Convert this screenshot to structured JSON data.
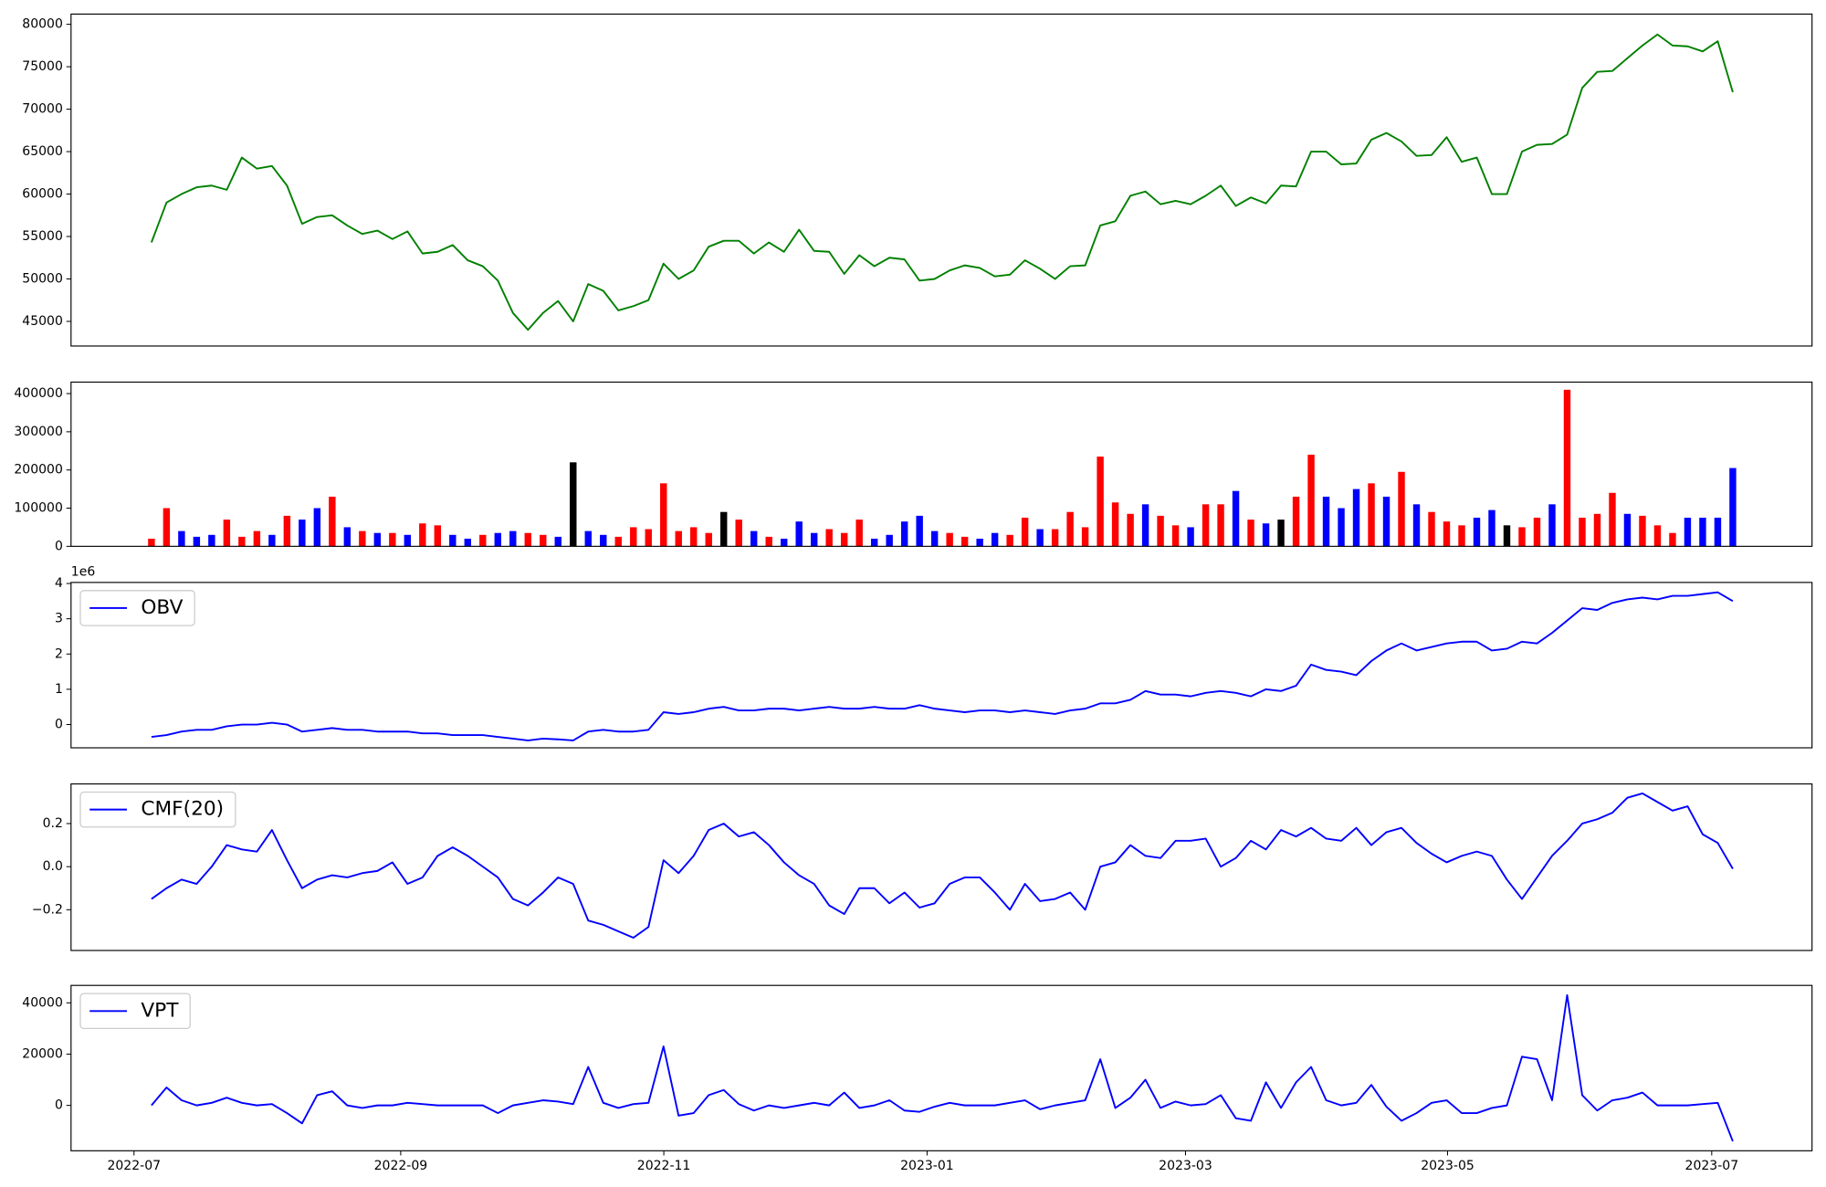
{
  "chart_data": [
    {
      "type": "line",
      "series": [
        {
          "color": "green",
          "values": [
            54300,
            59000,
            60000,
            60800,
            61000,
            60500,
            64300,
            63000,
            63300,
            61000,
            56500,
            57300,
            57500,
            56300,
            55300,
            55700,
            54700,
            55600,
            53000,
            53200,
            54000,
            52200,
            51500,
            49800,
            46000,
            44000,
            46000,
            47400,
            45000,
            49400,
            48600,
            46300,
            46800,
            47500,
            51800,
            50000,
            51000,
            53800,
            54500,
            54500,
            53000,
            54300,
            53200,
            55800,
            53300,
            53200,
            50600,
            52800,
            51500,
            52500,
            52300,
            49800,
            50000,
            51000,
            51600,
            51300,
            50300,
            50500,
            52200,
            51200,
            50000,
            51500,
            51600,
            56300,
            56800,
            59800,
            60300,
            58800,
            59200,
            58800,
            59800,
            61000,
            58600,
            59600,
            58900,
            61000,
            60900,
            65000,
            65000,
            63500,
            63600,
            66400,
            67200,
            66200,
            64500,
            64600,
            66700,
            63800,
            64300,
            60000,
            60000,
            65000,
            65800,
            65900,
            67000,
            72500,
            74400,
            74500,
            76000,
            77500,
            78800,
            77500,
            77400,
            76800,
            78000,
            72000
          ]
        }
      ],
      "xlim": [
        -5.34,
        110.26
      ],
      "ylim": [
        42100,
        81200
      ],
      "yticks": [
        45000,
        50000,
        55000,
        60000,
        65000,
        70000,
        75000,
        80000
      ]
    },
    {
      "type": "bar",
      "series": [
        {
          "values": [
            20000,
            100000,
            40000,
            25000,
            30000,
            70000,
            25000,
            40000,
            30000,
            80000,
            70000,
            100000,
            130000,
            50000,
            40000,
            35000,
            35000,
            30000,
            60000,
            55000,
            30000,
            20000,
            30000,
            35000,
            40000,
            35000,
            30000,
            25000,
            220000,
            40000,
            30000,
            25000,
            50000,
            45000,
            165000,
            40000,
            50000,
            35000,
            90000,
            70000,
            40000,
            25000,
            20000,
            65000,
            35000,
            45000,
            35000,
            70000,
            20000,
            30000,
            65000,
            80000,
            40000,
            35000,
            25000,
            20000,
            35000,
            30000,
            75000,
            45000,
            45000,
            90000,
            50000,
            235000,
            115000,
            85000,
            110000,
            80000,
            55000,
            50000,
            110000,
            110000,
            145000,
            70000,
            60000,
            70000,
            130000,
            240000,
            130000,
            100000,
            150000,
            165000,
            130000,
            195000,
            110000,
            90000,
            65000,
            55000,
            75000,
            95000,
            55000,
            50000,
            75000,
            110000,
            410000,
            75000,
            85000,
            140000,
            85000,
            80000,
            55000,
            35000,
            75000,
            75000,
            75000,
            205000
          ],
          "colors": [
            "red",
            "red",
            "blue",
            "blue",
            "blue",
            "red",
            "red",
            "red",
            "blue",
            "red",
            "blue",
            "blue",
            "red",
            "blue",
            "red",
            "blue",
            "red",
            "blue",
            "red",
            "red",
            "blue",
            "blue",
            "red",
            "blue",
            "blue",
            "red",
            "red",
            "blue",
            "black",
            "blue",
            "blue",
            "red",
            "red",
            "red",
            "red",
            "red",
            "red",
            "red",
            "black",
            "red",
            "blue",
            "red",
            "blue",
            "blue",
            "blue",
            "red",
            "red",
            "red",
            "blue",
            "blue",
            "blue",
            "blue",
            "blue",
            "red",
            "red",
            "blue",
            "blue",
            "red",
            "red",
            "blue",
            "red",
            "red",
            "red",
            "red",
            "red",
            "red",
            "blue",
            "red",
            "red",
            "blue",
            "red",
            "red",
            "blue",
            "red",
            "blue",
            "black",
            "red",
            "red",
            "blue",
            "blue",
            "blue",
            "red",
            "blue",
            "red",
            "blue",
            "red",
            "red",
            "red",
            "blue",
            "blue",
            "black",
            "red",
            "red",
            "blue",
            "red",
            "red",
            "red",
            "red",
            "blue",
            "red",
            "red",
            "red",
            "blue",
            "blue",
            "blue",
            "blue"
          ]
        }
      ],
      "xlim": [
        -5.34,
        110.26
      ],
      "ylim": [
        0,
        430000
      ],
      "yticks": [
        0,
        100000,
        200000,
        300000,
        400000
      ]
    },
    {
      "type": "line",
      "legend": "upper left",
      "offset_text": "1e6",
      "series": [
        {
          "name": "OBV",
          "color": "blue",
          "values": [
            -0.35,
            -0.3,
            -0.2,
            -0.15,
            -0.15,
            -0.05,
            0.0,
            0.0,
            0.05,
            0.0,
            -0.2,
            -0.15,
            -0.1,
            -0.15,
            -0.15,
            -0.2,
            -0.2,
            -0.2,
            -0.25,
            -0.25,
            -0.3,
            -0.3,
            -0.3,
            -0.35,
            -0.4,
            -0.45,
            -0.4,
            -0.42,
            -0.45,
            -0.2,
            -0.15,
            -0.2,
            -0.2,
            -0.15,
            0.35,
            0.3,
            0.35,
            0.45,
            0.5,
            0.4,
            0.4,
            0.45,
            0.45,
            0.4,
            0.45,
            0.5,
            0.45,
            0.45,
            0.5,
            0.45,
            0.45,
            0.55,
            0.45,
            0.4,
            0.35,
            0.4,
            0.4,
            0.35,
            0.4,
            0.35,
            0.3,
            0.4,
            0.45,
            0.6,
            0.6,
            0.7,
            0.95,
            0.85,
            0.85,
            0.8,
            0.9,
            0.95,
            0.9,
            0.8,
            1.0,
            0.95,
            1.1,
            1.7,
            1.55,
            1.5,
            1.4,
            1.8,
            2.1,
            2.3,
            2.1,
            2.2,
            2.3,
            2.35,
            2.35,
            2.1,
            2.15,
            2.35,
            2.3,
            2.6,
            2.95,
            3.3,
            3.25,
            3.45,
            3.55,
            3.6,
            3.55,
            3.65,
            3.65,
            3.7,
            3.75,
            3.5
          ]
        }
      ],
      "xlim": [
        -5.34,
        110.26
      ],
      "ylim": [
        -0.66,
        4.03
      ],
      "yticks": [
        0,
        1,
        2,
        3,
        4
      ]
    },
    {
      "type": "line",
      "legend": "upper left",
      "series": [
        {
          "name": "CMF(20)",
          "color": "blue",
          "values": [
            -0.15,
            -0.1,
            -0.06,
            -0.08,
            0.0,
            0.1,
            0.08,
            0.07,
            0.17,
            0.03,
            -0.1,
            -0.06,
            -0.04,
            -0.05,
            -0.03,
            -0.02,
            0.02,
            -0.08,
            -0.05,
            0.05,
            0.09,
            0.05,
            0.0,
            -0.05,
            -0.15,
            -0.18,
            -0.12,
            -0.05,
            -0.08,
            -0.25,
            -0.27,
            -0.3,
            -0.33,
            -0.28,
            0.03,
            -0.03,
            0.05,
            0.17,
            0.2,
            0.14,
            0.16,
            0.1,
            0.02,
            -0.04,
            -0.08,
            -0.18,
            -0.22,
            -0.1,
            -0.1,
            -0.17,
            -0.12,
            -0.19,
            -0.17,
            -0.08,
            -0.05,
            -0.05,
            -0.12,
            -0.2,
            -0.08,
            -0.16,
            -0.15,
            -0.12,
            -0.2,
            0.0,
            0.02,
            0.1,
            0.05,
            0.04,
            0.12,
            0.12,
            0.13,
            0.0,
            0.04,
            0.12,
            0.08,
            0.17,
            0.14,
            0.18,
            0.13,
            0.12,
            0.18,
            0.1,
            0.16,
            0.18,
            0.11,
            0.06,
            0.02,
            0.05,
            0.07,
            0.05,
            -0.06,
            -0.15,
            -0.05,
            0.05,
            0.12,
            0.2,
            0.22,
            0.25,
            0.32,
            0.34,
            0.3,
            0.26,
            0.28,
            0.15,
            0.11,
            -0.01
          ]
        }
      ],
      "xlim": [
        -5.34,
        110.26
      ],
      "ylim": [
        -0.389,
        0.384
      ],
      "yticks": [
        {
          "value": -0.2,
          "label": "−0.2"
        },
        {
          "value": 0,
          "label": "0.0"
        },
        {
          "value": 0.2,
          "label": "0.2"
        }
      ]
    },
    {
      "type": "line",
      "legend": "upper left",
      "series": [
        {
          "name": "VPT",
          "color": "blue",
          "values": [
            0,
            7000,
            2000,
            0,
            1000,
            3000,
            1000,
            0,
            500,
            -3000,
            -7000,
            4000,
            5500,
            0,
            -1000,
            0,
            0,
            1000,
            500,
            0,
            0,
            0,
            0,
            -3000,
            0,
            1000,
            2000,
            1500,
            500,
            15000,
            1000,
            -1000,
            500,
            1000,
            23000,
            -4000,
            -3000,
            4000,
            6000,
            500,
            -2000,
            0,
            -1000,
            0,
            1000,
            0,
            5000,
            -1000,
            0,
            2000,
            -2000,
            -2500,
            -500,
            1000,
            0,
            0,
            0,
            1000,
            2000,
            -1500,
            0,
            1000,
            2000,
            18000,
            -1000,
            3000,
            10000,
            -1000,
            1500,
            0,
            500,
            4000,
            -5000,
            -6000,
            9000,
            -1000,
            9000,
            15000,
            2000,
            0,
            1000,
            8000,
            -500,
            -6000,
            -3000,
            1000,
            2000,
            -3000,
            -3000,
            -1000,
            0,
            19000,
            18000,
            2000,
            43000,
            4000,
            -2000,
            2000,
            3000,
            5000,
            0,
            0,
            0,
            500,
            1000,
            -14000
          ]
        }
      ],
      "xlim": [
        -5.34,
        110.26
      ],
      "ylim": [
        -17700,
        46800
      ],
      "yticks": [
        0,
        20000,
        40000
      ],
      "xticks": [
        {
          "value": -1.16,
          "label": "2022-07"
        },
        {
          "value": 16.55,
          "label": "2022-09"
        },
        {
          "value": 34.02,
          "label": "2022-11"
        },
        {
          "value": 51.5,
          "label": "2023-01"
        },
        {
          "value": 68.66,
          "label": "2023-03"
        },
        {
          "value": 86.06,
          "label": "2023-05"
        },
        {
          "value": 103.6,
          "label": "2023-07"
        }
      ]
    }
  ]
}
